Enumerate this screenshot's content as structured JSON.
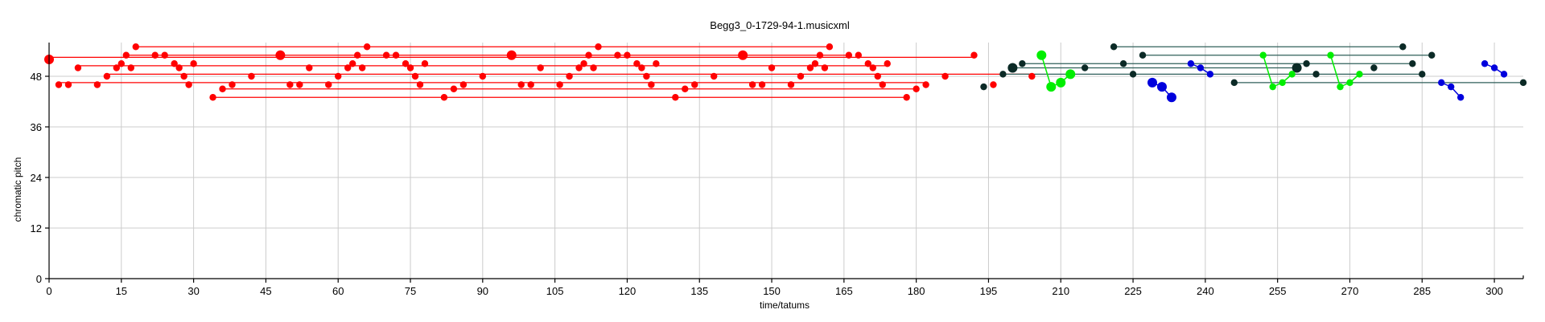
{
  "chart_data": {
    "type": "scatter",
    "title": "Begg3_0-1729-94-1.musicxml",
    "xlabel": "time/tatums",
    "ylabel": "chromatic pitch",
    "xlim": [
      0,
      306
    ],
    "ylim": [
      0,
      56
    ],
    "xticks": [
      0,
      15,
      30,
      45,
      60,
      75,
      90,
      105,
      120,
      135,
      150,
      165,
      180,
      195,
      210,
      225,
      240,
      255,
      270,
      285,
      300
    ],
    "yticks": [
      0,
      12,
      24,
      36,
      48
    ],
    "grid": true,
    "legend": "none",
    "colors": {
      "red": "#ff0000",
      "dark": "#0b2a26",
      "green": "#00ee00",
      "blue": "#0000dd",
      "teal_line": "#2f5f5a"
    },
    "series": [
      {
        "color": "red",
        "points": [
          {
            "x": 0,
            "y": 52,
            "big": true
          },
          {
            "x": 2,
            "y": 46
          },
          {
            "x": 4,
            "y": 46
          },
          {
            "x": 6,
            "y": 50
          },
          {
            "x": 10,
            "y": 46
          },
          {
            "x": 12,
            "y": 48
          },
          {
            "x": 14,
            "y": 50
          },
          {
            "x": 15,
            "y": 51
          },
          {
            "x": 16,
            "y": 53
          },
          {
            "x": 17,
            "y": 50
          },
          {
            "x": 18,
            "y": 55
          },
          {
            "x": 22,
            "y": 53
          },
          {
            "x": 24,
            "y": 53
          },
          {
            "x": 26,
            "y": 51
          },
          {
            "x": 27,
            "y": 50
          },
          {
            "x": 28,
            "y": 48
          },
          {
            "x": 29,
            "y": 46
          },
          {
            "x": 30,
            "y": 51
          },
          {
            "x": 34,
            "y": 43
          },
          {
            "x": 36,
            "y": 45
          },
          {
            "x": 38,
            "y": 46
          },
          {
            "x": 42,
            "y": 48
          },
          {
            "x": 48,
            "y": 53,
            "big": true
          },
          {
            "x": 50,
            "y": 46
          },
          {
            "x": 52,
            "y": 46
          },
          {
            "x": 54,
            "y": 50
          },
          {
            "x": 58,
            "y": 46
          },
          {
            "x": 60,
            "y": 48
          },
          {
            "x": 62,
            "y": 50
          },
          {
            "x": 63,
            "y": 51
          },
          {
            "x": 64,
            "y": 53
          },
          {
            "x": 65,
            "y": 50
          },
          {
            "x": 66,
            "y": 55
          },
          {
            "x": 70,
            "y": 53
          },
          {
            "x": 72,
            "y": 53
          },
          {
            "x": 74,
            "y": 51
          },
          {
            "x": 75,
            "y": 50
          },
          {
            "x": 76,
            "y": 48
          },
          {
            "x": 77,
            "y": 46
          },
          {
            "x": 78,
            "y": 51
          },
          {
            "x": 82,
            "y": 43
          },
          {
            "x": 84,
            "y": 45
          },
          {
            "x": 86,
            "y": 46
          },
          {
            "x": 90,
            "y": 48
          },
          {
            "x": 96,
            "y": 53,
            "big": true
          },
          {
            "x": 98,
            "y": 46
          },
          {
            "x": 100,
            "y": 46
          },
          {
            "x": 102,
            "y": 50
          },
          {
            "x": 106,
            "y": 46
          },
          {
            "x": 108,
            "y": 48
          },
          {
            "x": 110,
            "y": 50
          },
          {
            "x": 111,
            "y": 51
          },
          {
            "x": 112,
            "y": 53
          },
          {
            "x": 113,
            "y": 50
          },
          {
            "x": 114,
            "y": 55
          },
          {
            "x": 118,
            "y": 53
          },
          {
            "x": 120,
            "y": 53
          },
          {
            "x": 122,
            "y": 51
          },
          {
            "x": 123,
            "y": 50
          },
          {
            "x": 124,
            "y": 48
          },
          {
            "x": 125,
            "y": 46
          },
          {
            "x": 126,
            "y": 51
          },
          {
            "x": 130,
            "y": 43
          },
          {
            "x": 132,
            "y": 45
          },
          {
            "x": 134,
            "y": 46
          },
          {
            "x": 138,
            "y": 48
          },
          {
            "x": 144,
            "y": 53,
            "big": true
          },
          {
            "x": 146,
            "y": 46
          },
          {
            "x": 148,
            "y": 46
          },
          {
            "x": 150,
            "y": 50
          },
          {
            "x": 154,
            "y": 46
          },
          {
            "x": 156,
            "y": 48
          },
          {
            "x": 158,
            "y": 50
          },
          {
            "x": 159,
            "y": 51
          },
          {
            "x": 160,
            "y": 53
          },
          {
            "x": 161,
            "y": 50
          },
          {
            "x": 162,
            "y": 55
          },
          {
            "x": 166,
            "y": 53
          },
          {
            "x": 168,
            "y": 53
          },
          {
            "x": 170,
            "y": 51
          },
          {
            "x": 171,
            "y": 50
          },
          {
            "x": 172,
            "y": 48
          },
          {
            "x": 173,
            "y": 46
          },
          {
            "x": 174,
            "y": 51
          },
          {
            "x": 178,
            "y": 43
          },
          {
            "x": 180,
            "y": 45
          },
          {
            "x": 182,
            "y": 46
          },
          {
            "x": 186,
            "y": 48
          },
          {
            "x": 192,
            "y": 53
          },
          {
            "x": 196,
            "y": 46
          },
          {
            "x": 204,
            "y": 48
          }
        ],
        "sustain_lines": [
          {
            "x0": 0,
            "x1": 192,
            "y": 52.5
          },
          {
            "x0": 18,
            "x1": 162,
            "y": 55
          },
          {
            "x0": 16,
            "x1": 166,
            "y": 53
          },
          {
            "x0": 6,
            "x1": 174,
            "y": 50.5
          },
          {
            "x0": 12,
            "x1": 204,
            "y": 48.5
          },
          {
            "x0": 2,
            "x1": 182,
            "y": 46.5
          },
          {
            "x0": 36,
            "x1": 180,
            "y": 45
          },
          {
            "x0": 34,
            "x1": 178,
            "y": 43
          }
        ]
      },
      {
        "color": "dark",
        "points": [
          {
            "x": 194,
            "y": 45.5
          },
          {
            "x": 198,
            "y": 48.5
          },
          {
            "x": 200,
            "y": 50,
            "big": true
          },
          {
            "x": 202,
            "y": 51
          },
          {
            "x": 215,
            "y": 50
          },
          {
            "x": 221,
            "y": 55
          },
          {
            "x": 223,
            "y": 51
          },
          {
            "x": 225,
            "y": 48.5
          },
          {
            "x": 227,
            "y": 53
          },
          {
            "x": 246,
            "y": 46.5
          },
          {
            "x": 259,
            "y": 50,
            "big": true
          },
          {
            "x": 261,
            "y": 51
          },
          {
            "x": 263,
            "y": 48.5
          },
          {
            "x": 275,
            "y": 50
          },
          {
            "x": 281,
            "y": 55
          },
          {
            "x": 283,
            "y": 51
          },
          {
            "x": 285,
            "y": 48.5
          },
          {
            "x": 287,
            "y": 53
          },
          {
            "x": 306,
            "y": 46.5
          }
        ],
        "sustain_lines": [
          {
            "x0": 221,
            "x1": 281,
            "y": 55
          },
          {
            "x0": 227,
            "x1": 287,
            "y": 53
          },
          {
            "x0": 202,
            "x1": 283,
            "y": 51
          },
          {
            "x0": 200,
            "x1": 259,
            "y": 50
          },
          {
            "x0": 198,
            "x1": 285,
            "y": 48.5
          },
          {
            "x0": 246,
            "x1": 306,
            "y": 46.5
          }
        ]
      },
      {
        "color": "green",
        "points": [
          {
            "x": 206,
            "y": 53,
            "big": true
          },
          {
            "x": 208,
            "y": 45.5,
            "big": true
          },
          {
            "x": 210,
            "y": 46.5,
            "big": true
          },
          {
            "x": 212,
            "y": 48.5,
            "big": true
          },
          {
            "x": 252,
            "y": 53
          },
          {
            "x": 254,
            "y": 45.5
          },
          {
            "x": 256,
            "y": 46.5
          },
          {
            "x": 258,
            "y": 48.5
          },
          {
            "x": 266,
            "y": 53
          },
          {
            "x": 268,
            "y": 45.5
          },
          {
            "x": 270,
            "y": 46.5
          },
          {
            "x": 272,
            "y": 48.5
          }
        ]
      },
      {
        "color": "blue",
        "points": [
          {
            "x": 229,
            "y": 46.5,
            "big": true
          },
          {
            "x": 231,
            "y": 45.5,
            "big": true
          },
          {
            "x": 233,
            "y": 43,
            "big": true
          },
          {
            "x": 237,
            "y": 51
          },
          {
            "x": 239,
            "y": 50
          },
          {
            "x": 241,
            "y": 48.5
          },
          {
            "x": 289,
            "y": 46.5
          },
          {
            "x": 291,
            "y": 45.5
          },
          {
            "x": 293,
            "y": 43
          },
          {
            "x": 298,
            "y": 51
          },
          {
            "x": 300,
            "y": 50
          },
          {
            "x": 302,
            "y": 48.5
          }
        ]
      }
    ]
  }
}
